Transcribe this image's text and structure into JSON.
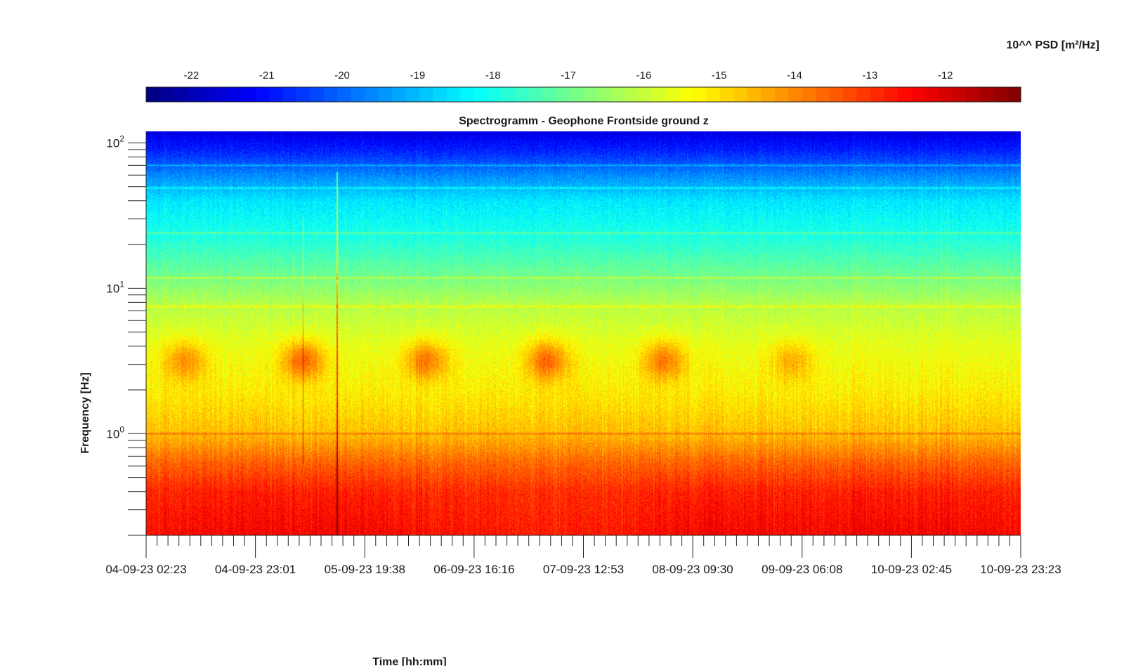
{
  "chart_data": {
    "type": "heatmap",
    "title": "Spectrogramm - Geophone Frontside ground z",
    "xlabel": "Time [hh:mm]",
    "ylabel": "Frequency [Hz]",
    "y_scale": "log",
    "ylim": [
      0.2,
      120
    ],
    "y_ticks": [
      {
        "value": 1,
        "base": "10",
        "exp": "0"
      },
      {
        "value": 10,
        "base": "10",
        "exp": "1"
      },
      {
        "value": 100,
        "base": "10",
        "exp": "2"
      }
    ],
    "x_tick_labels": [
      "04-09-23 02:23",
      "04-09-23 23:01",
      "05-09-23 19:38",
      "06-09-23 16:16",
      "07-09-23 12:53",
      "08-09-23 09:30",
      "09-09-23 06:08",
      "10-09-23 02:45",
      "10-09-23 23:23"
    ],
    "xlim": [
      "04-09-23 02:23",
      "10-09-23 23:23"
    ],
    "colorbar": {
      "title": "10^^ PSD [m²/Hz]",
      "tick_labels": [
        "-22",
        "-21",
        "-20",
        "-19",
        "-18",
        "-17",
        "-16",
        "-15",
        "-14",
        "-13",
        "-12"
      ],
      "range": [
        -22.6,
        -11.0
      ],
      "colormap": "jet",
      "placement": "top"
    },
    "features": {
      "persistent_line_hz": [
        1.0,
        7.5,
        11.8,
        24,
        49,
        70
      ],
      "daily_activity_band_hz": [
        2,
        5
      ],
      "activity_bursts_center": [
        "04-09-23 09:30",
        "05-09-23 08:00",
        "06-09-23 07:00",
        "07-09-23 06:00",
        "08-09-23 04:00",
        "09-09-23 04:00"
      ],
      "transient_spike": "05-09-23 14:30",
      "low_frequency_level_log10": -12.3,
      "high_frequency_level_log10": -21.5
    }
  }
}
